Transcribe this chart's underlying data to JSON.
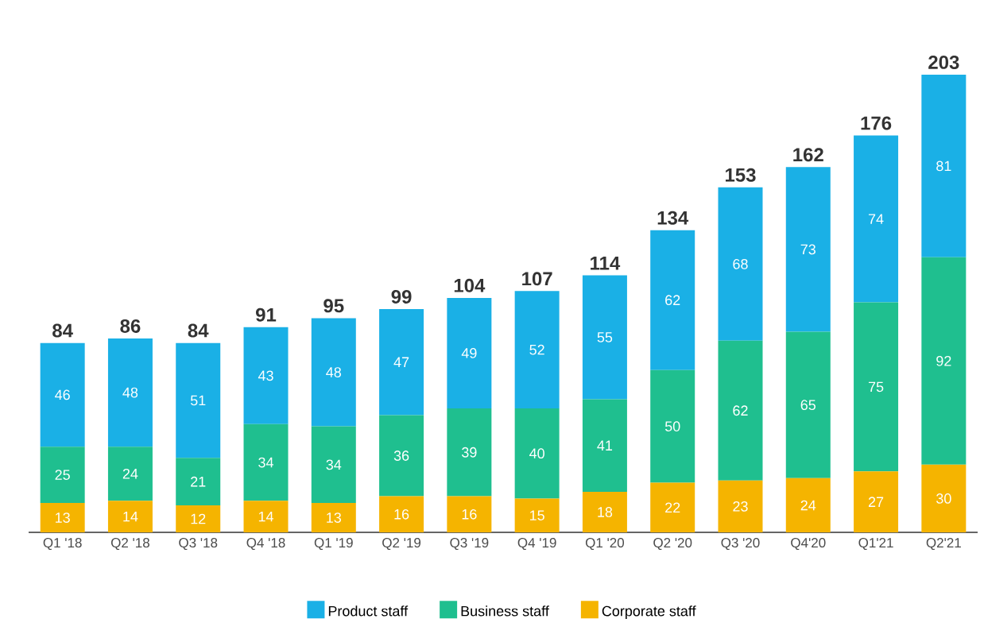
{
  "chart_data": {
    "type": "bar",
    "stacked": true,
    "data_labels": true,
    "legend": "bottom",
    "categories": [
      "Q1 '18",
      "Q2 '18",
      "Q3 '18",
      "Q4 '18",
      "Q1 '19",
      "Q2 '19",
      "Q3 '19",
      "Q4 '19",
      "Q1 '20",
      "Q2 '20",
      "Q3 '20",
      "Q4'20",
      "Q1'21",
      "Q2'21"
    ],
    "series": [
      {
        "name": "Corporate staff",
        "color": "#f5b400",
        "values": [
          13,
          14,
          12,
          14,
          13,
          16,
          16,
          15,
          18,
          22,
          23,
          24,
          27,
          30
        ]
      },
      {
        "name": "Business staff",
        "color": "#1fbf8f",
        "values": [
          25,
          24,
          21,
          34,
          34,
          36,
          39,
          40,
          41,
          50,
          62,
          65,
          75,
          92
        ]
      },
      {
        "name": "Product staff",
        "color": "#1ab0e6",
        "values": [
          46,
          48,
          51,
          43,
          48,
          47,
          49,
          52,
          55,
          62,
          68,
          73,
          74,
          81
        ]
      }
    ],
    "totals": [
      "84",
      "86",
      "84",
      "91",
      "95",
      "99",
      "104",
      "107",
      "114",
      "134",
      "153",
      "162",
      "176",
      "203"
    ]
  }
}
